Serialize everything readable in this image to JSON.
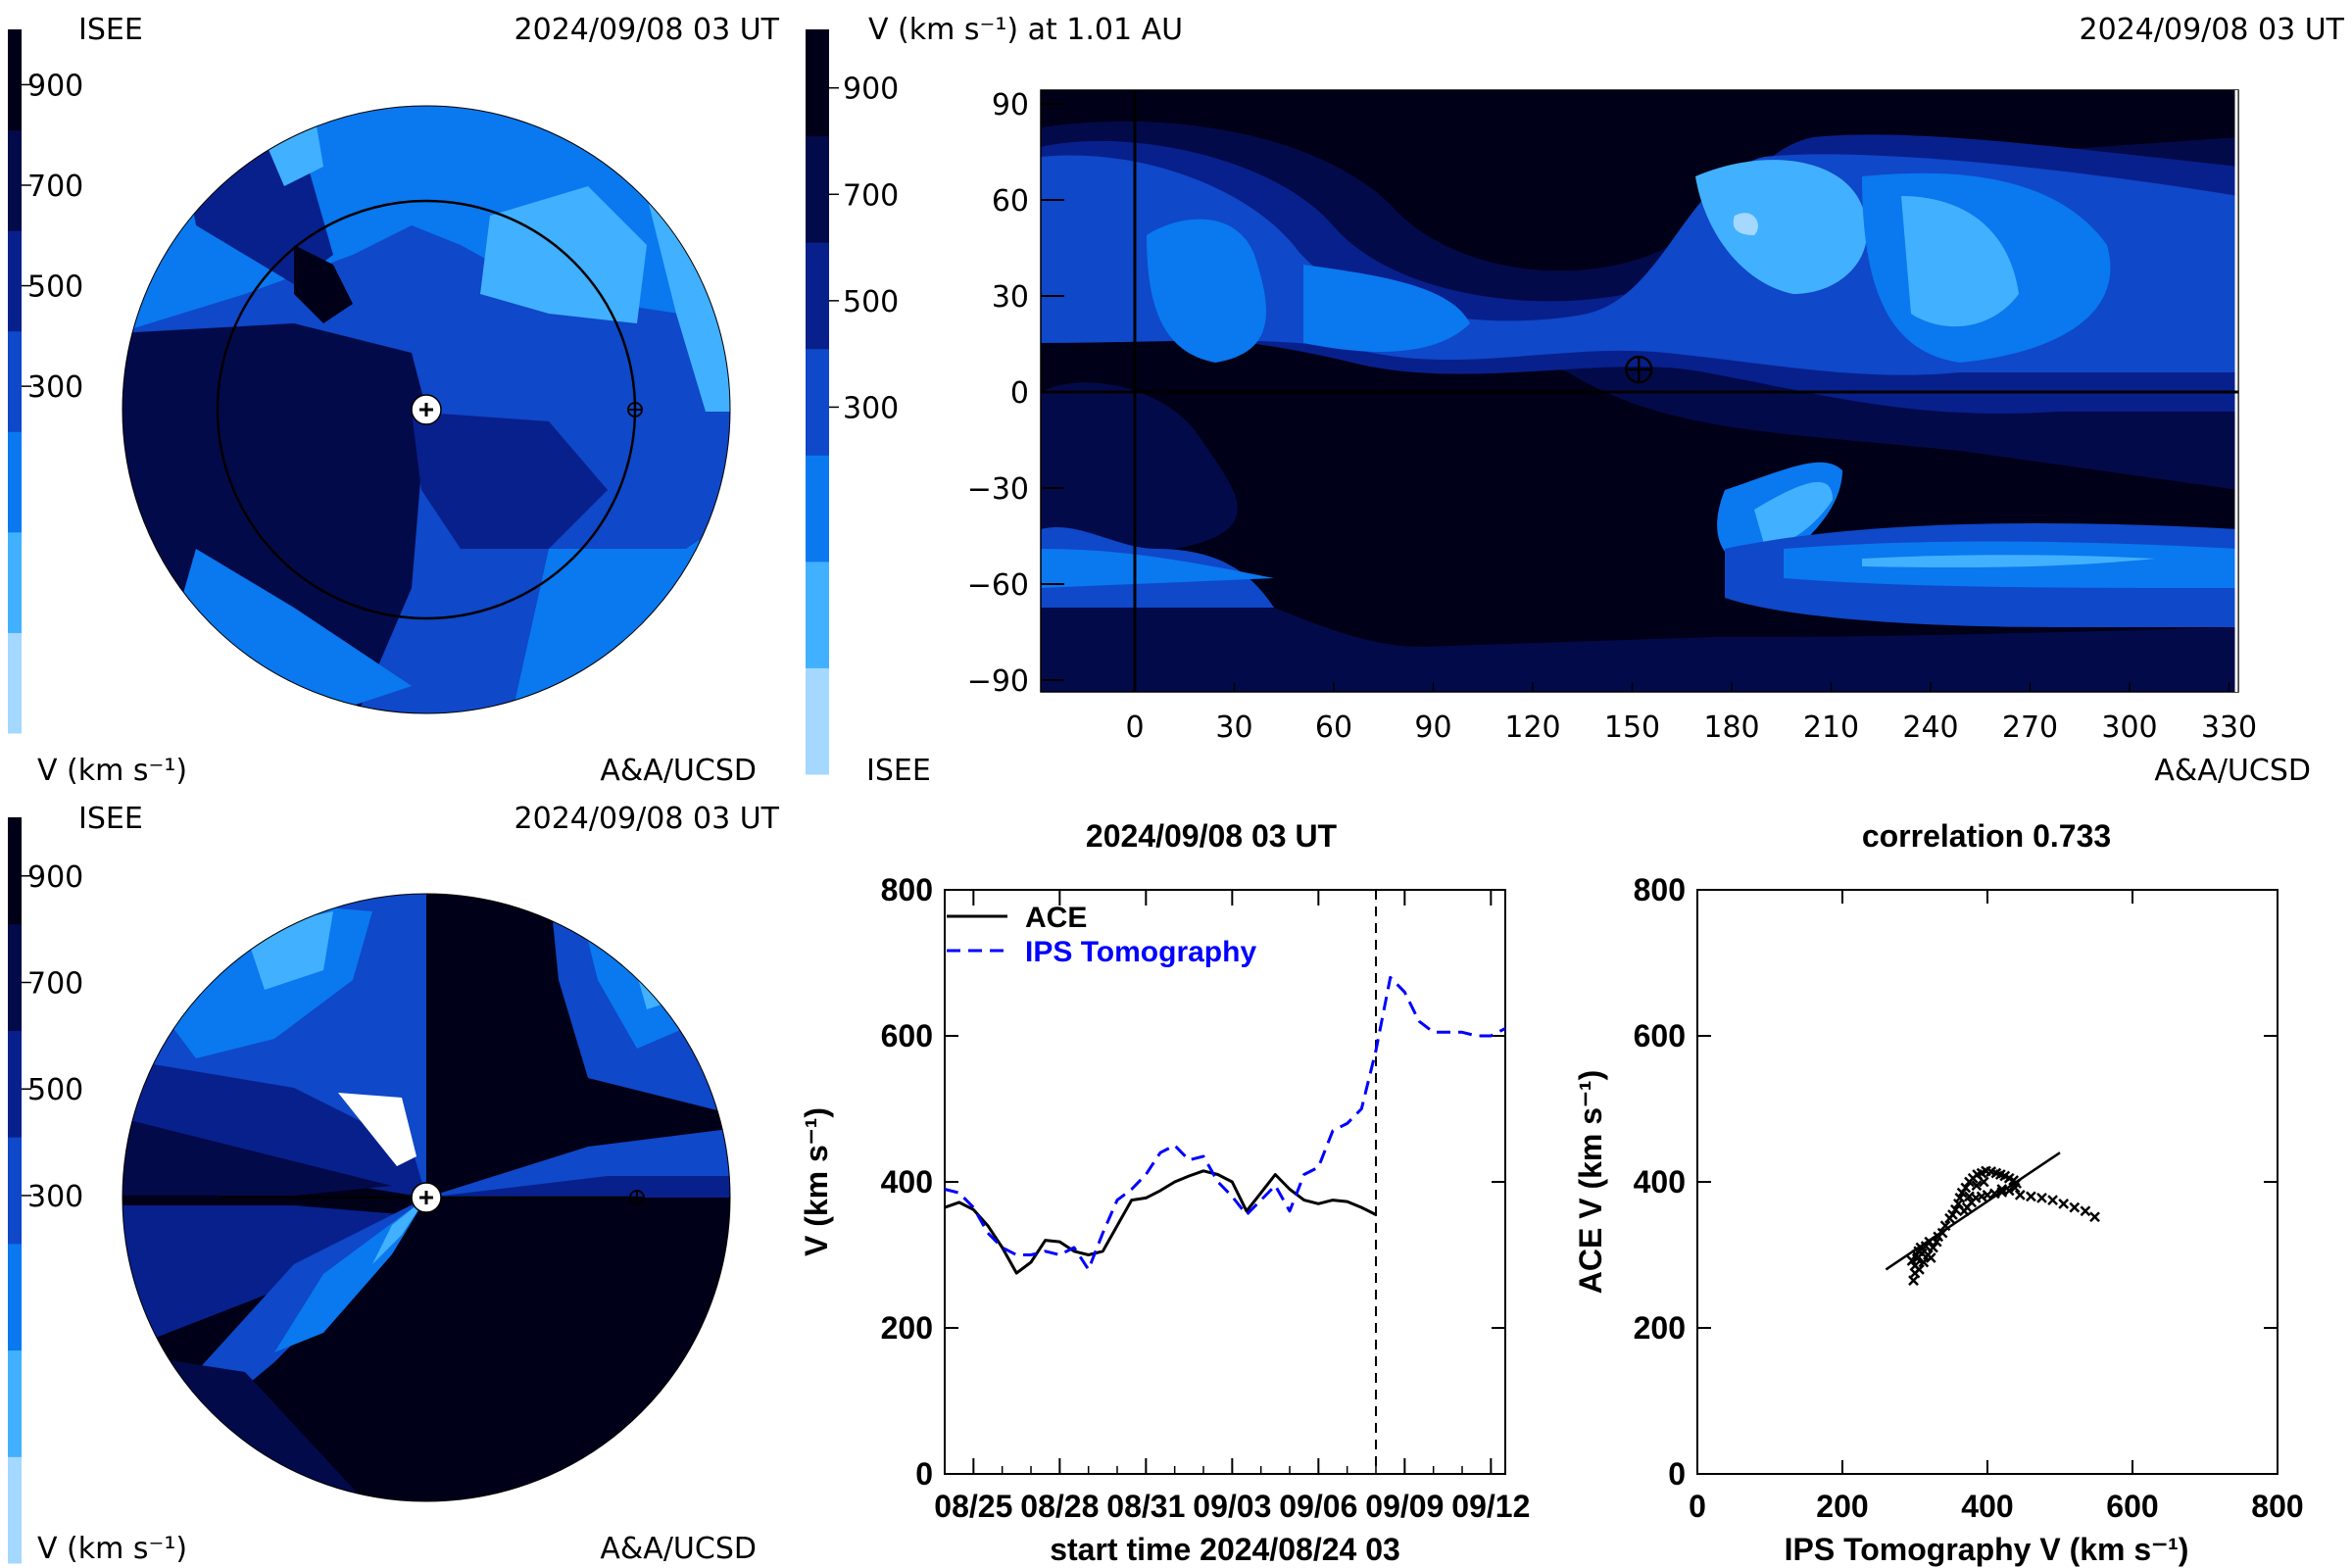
{
  "colorbar": {
    "colors": [
      "#a4d8ff",
      "#41b0ff",
      "#0a78ef",
      "#0f48c8",
      "#08208c",
      "#030a4a",
      "#000018"
    ],
    "ticks": [
      "900",
      "700",
      "500",
      "300"
    ],
    "unit_label": "V (km s⁻¹)"
  },
  "panel_top_left": {
    "org": "ISEE",
    "timestamp": "2024/09/08 03 UT",
    "credit": "A&A/UCSD",
    "unit_label": "V (km s⁻¹)"
  },
  "panel_top_right": {
    "title": "V (km s⁻¹) at 1.01 AU",
    "timestamp": "2024/09/08 03 UT",
    "org": "ISEE",
    "credit": "A&A/UCSD",
    "lon_ticks": [
      "0",
      "30",
      "60",
      "90",
      "120",
      "150",
      "180",
      "210",
      "240",
      "270",
      "300",
      "330"
    ],
    "lat_ticks": [
      "90",
      "60",
      "30",
      "0",
      "−30",
      "−60",
      "−90"
    ],
    "earth_marker": {
      "longitude": 152,
      "latitude": 7
    }
  },
  "panel_bottom_left": {
    "org": "ISEE",
    "timestamp": "2024/09/08 03 UT",
    "credit": "A&A/UCSD",
    "unit_label": "V (km s⁻¹)"
  },
  "chart_data": [
    {
      "type": "line",
      "title": "2024/09/08 03 UT",
      "xlabel": "start time 2024/08/24 03",
      "ylabel": "V (km s⁻¹)",
      "x_tick_labels": [
        "08/25",
        "08/28",
        "08/31",
        "09/03",
        "09/06",
        "09/09",
        "09/12"
      ],
      "x_tick_days": [
        1,
        4,
        7,
        10,
        13,
        16,
        19
      ],
      "y_ticks": [
        0,
        200,
        400,
        600,
        800
      ],
      "ylim": [
        0,
        800
      ],
      "xlim": [
        0,
        19.5
      ],
      "current_time_day": 15,
      "legend": [
        "ACE",
        "IPS Tomography"
      ],
      "series": [
        {
          "name": "ACE",
          "color": "#000000",
          "x": [
            0,
            0.5,
            1,
            1.5,
            2,
            2.5,
            3,
            3.5,
            4,
            4.5,
            5,
            5.5,
            6,
            6.5,
            7,
            7.5,
            8,
            8.5,
            9,
            9.5,
            10,
            10.5,
            11,
            11.5,
            12,
            12.5,
            13,
            13.5,
            14,
            14.5,
            15
          ],
          "y": [
            365,
            372,
            362,
            340,
            310,
            275,
            290,
            320,
            318,
            305,
            300,
            305,
            340,
            375,
            378,
            388,
            400,
            408,
            415,
            410,
            400,
            360,
            385,
            410,
            390,
            375,
            370,
            375,
            373,
            365,
            355
          ]
        },
        {
          "name": "IPS Tomography",
          "color": "#0000ff",
          "x": [
            0,
            0.5,
            1,
            1.5,
            2,
            2.5,
            3,
            3.5,
            4,
            4.5,
            5,
            5.5,
            6,
            6.5,
            7,
            7.5,
            8,
            8.5,
            9,
            9.5,
            10,
            10.5,
            11,
            11.5,
            12,
            12.5,
            13,
            13.5,
            14,
            14.5,
            15,
            15.5,
            16,
            16.5,
            17,
            17.5,
            18,
            18.5,
            19,
            19.5
          ],
          "y": [
            390,
            385,
            365,
            330,
            310,
            300,
            300,
            305,
            300,
            310,
            280,
            330,
            375,
            390,
            410,
            440,
            450,
            430,
            435,
            400,
            380,
            355,
            375,
            395,
            360,
            410,
            420,
            470,
            480,
            500,
            580,
            680,
            660,
            620,
            605,
            605,
            605,
            600,
            600,
            610
          ]
        }
      ]
    },
    {
      "type": "scatter",
      "title": "correlation 0.733",
      "xlabel": "IPS Tomography V (km s⁻¹)",
      "ylabel": "ACE V (km s⁻¹)",
      "x_ticks": [
        0,
        200,
        400,
        600,
        800
      ],
      "y_ticks": [
        0,
        200,
        400,
        600,
        800
      ],
      "xlim": [
        0,
        800
      ],
      "ylim": [
        0,
        800
      ],
      "fit_line": {
        "x": [
          260,
          500
        ],
        "y": [
          280,
          440
        ]
      },
      "points": [
        [
          300,
          275
        ],
        [
          300,
          285
        ],
        [
          303,
          295
        ],
        [
          305,
          305
        ],
        [
          308,
          310
        ],
        [
          310,
          302
        ],
        [
          315,
          312
        ],
        [
          320,
          318
        ],
        [
          325,
          310
        ],
        [
          330,
          318
        ],
        [
          332,
          325
        ],
        [
          338,
          330
        ],
        [
          342,
          340
        ],
        [
          348,
          350
        ],
        [
          352,
          355
        ],
        [
          356,
          362
        ],
        [
          360,
          370
        ],
        [
          362,
          378
        ],
        [
          365,
          385
        ],
        [
          370,
          392
        ],
        [
          375,
          400
        ],
        [
          380,
          405
        ],
        [
          386,
          410
        ],
        [
          392,
          412
        ],
        [
          398,
          415
        ],
        [
          405,
          414
        ],
        [
          412,
          412
        ],
        [
          418,
          410
        ],
        [
          424,
          408
        ],
        [
          430,
          405
        ],
        [
          436,
          402
        ],
        [
          440,
          398
        ],
        [
          438,
          392
        ],
        [
          430,
          388
        ],
        [
          420,
          386
        ],
        [
          410,
          384
        ],
        [
          400,
          382
        ],
        [
          392,
          380
        ],
        [
          384,
          378
        ],
        [
          378,
          372
        ],
        [
          372,
          365
        ],
        [
          368,
          360
        ],
        [
          375,
          380
        ],
        [
          385,
          395
        ],
        [
          395,
          400
        ],
        [
          420,
          390
        ],
        [
          445,
          382
        ],
        [
          460,
          380
        ],
        [
          475,
          378
        ],
        [
          490,
          375
        ],
        [
          505,
          370
        ],
        [
          520,
          365
        ],
        [
          535,
          360
        ],
        [
          548,
          352
        ],
        [
          318,
          300
        ],
        [
          322,
          296
        ],
        [
          312,
          290
        ],
        [
          306,
          280
        ],
        [
          298,
          265
        ],
        [
          296,
          292
        ],
        [
          302,
          300
        ]
      ]
    }
  ]
}
